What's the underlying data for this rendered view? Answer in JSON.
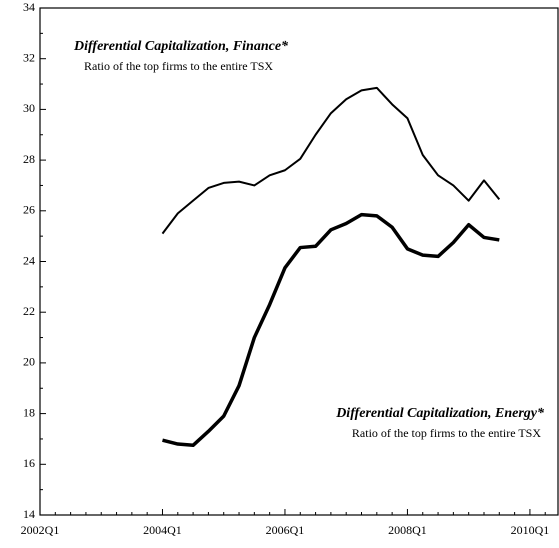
{
  "chart_data": {
    "type": "line",
    "categories": [
      "2002Q1",
      null,
      null,
      null,
      null,
      null,
      null,
      null,
      "2004Q1",
      null,
      null,
      null,
      null,
      null,
      null,
      null,
      "2006Q1",
      null,
      null,
      null,
      null,
      null,
      null,
      null,
      "2008Q1",
      null,
      null,
      null,
      null,
      null,
      null,
      null,
      "2010Q1",
      null
    ],
    "series": [
      {
        "name": "Finance",
        "color": "#000000",
        "width": 2,
        "values": [
          null,
          null,
          null,
          null,
          null,
          null,
          null,
          null,
          25.1,
          25.9,
          26.4,
          26.9,
          27.1,
          27.15,
          27.0,
          27.4,
          27.6,
          28.05,
          29.0,
          29.85,
          30.4,
          30.75,
          30.85,
          30.2,
          29.65,
          28.2,
          27.4,
          27.0,
          26.4,
          27.2,
          26.45,
          null,
          null,
          null
        ]
      },
      {
        "name": "Energy",
        "color": "#000000",
        "width": 3.5,
        "values": [
          null,
          null,
          null,
          null,
          null,
          null,
          null,
          null,
          16.95,
          16.8,
          16.75,
          17.3,
          17.9,
          19.1,
          21.0,
          22.3,
          23.75,
          24.55,
          24.6,
          25.25,
          25.5,
          25.85,
          25.8,
          25.35,
          24.5,
          24.25,
          24.2,
          24.75,
          25.45,
          24.95,
          24.85,
          null,
          null,
          null
        ]
      }
    ],
    "annotations": [
      {
        "title": "Differential Capitalization, Finance*",
        "text": "Ratio of the top firms to the entire TSX"
      },
      {
        "title": "Differential Capitalization, Energy*",
        "text": "Ratio of the top firms to the entire TSX"
      }
    ],
    "ylim": [
      14,
      34
    ],
    "yticks": [
      14,
      16,
      18,
      20,
      22,
      24,
      26,
      28,
      30,
      32,
      34
    ]
  }
}
